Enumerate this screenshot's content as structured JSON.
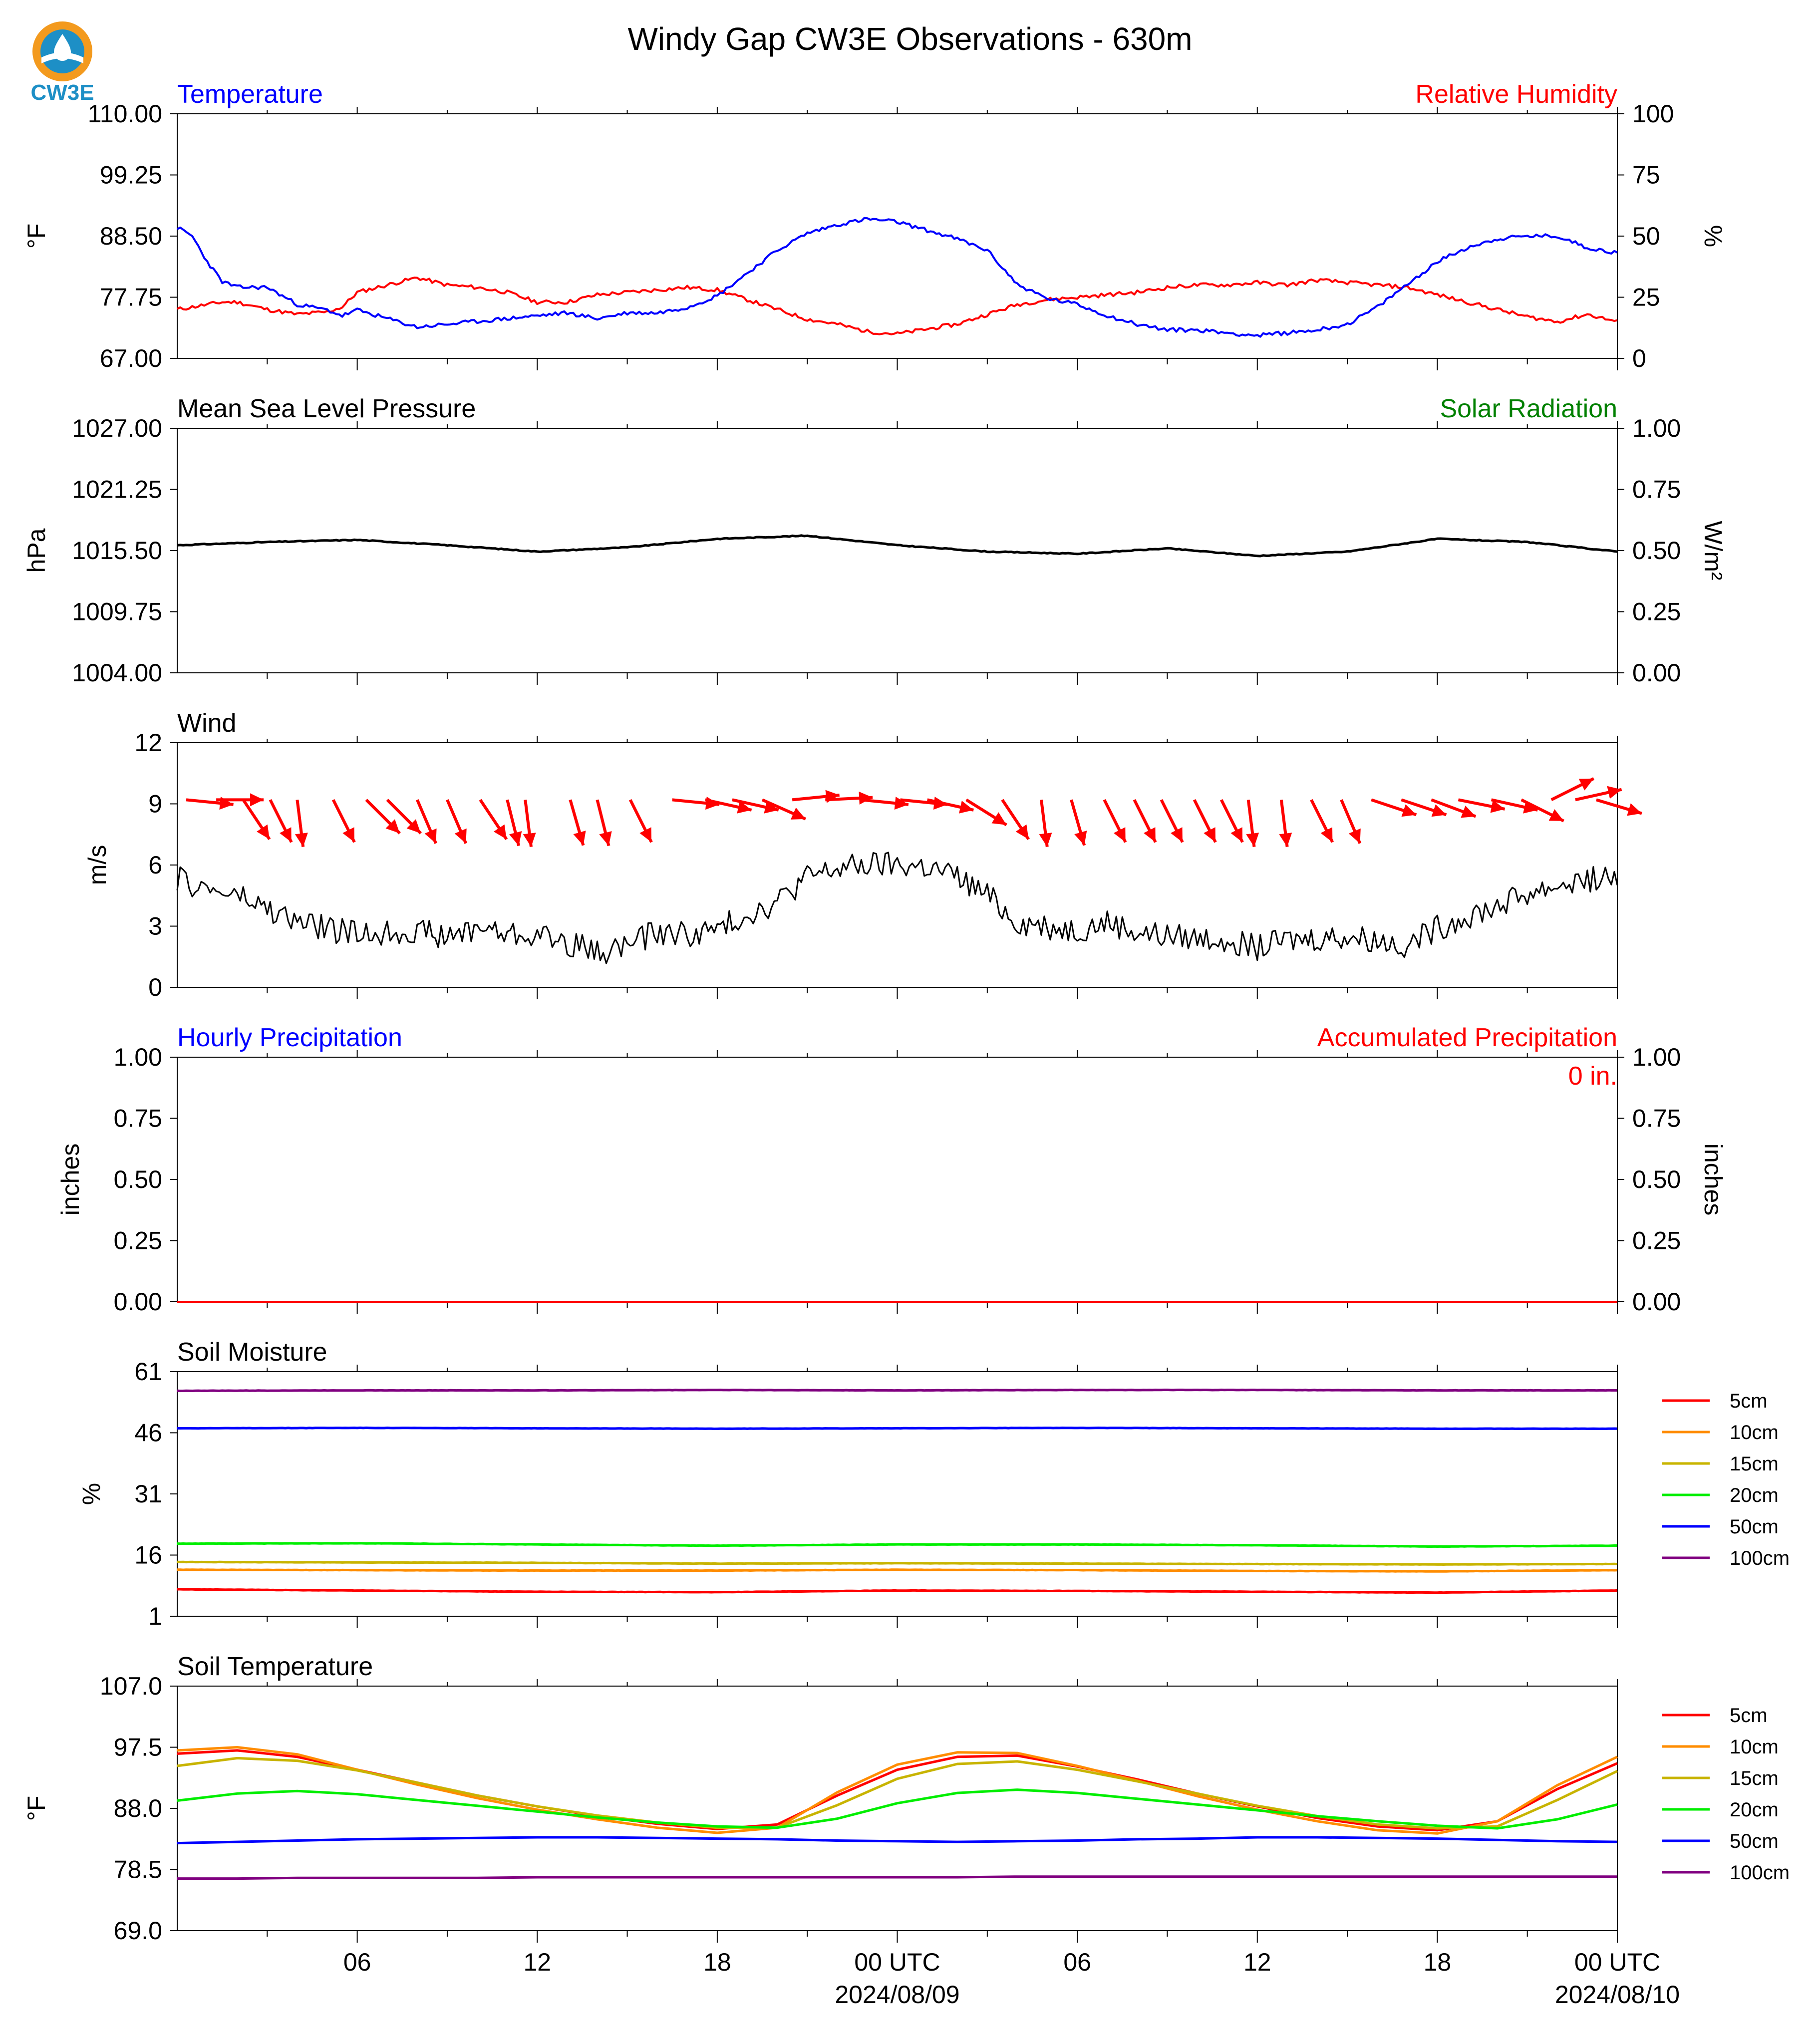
{
  "title": "Windy Gap CW3E Observations - 630m",
  "logo_text": "CW3E",
  "colors": {
    "temperature": "#0000ff",
    "humidity": "#ff0000",
    "pressure": "#000000",
    "solar": "#008000",
    "wind_speed": "#000000",
    "wind_vector": "#ff0000",
    "hourly_precip": "#0000ff",
    "accum_precip": "#ff0000"
  },
  "x_axis": {
    "hours_range": [
      0,
      48
    ],
    "major_ticks": [
      {
        "hour": 6,
        "label": "06",
        "sublabel": ""
      },
      {
        "hour": 12,
        "label": "12",
        "sublabel": ""
      },
      {
        "hour": 18,
        "label": "18",
        "sublabel": ""
      },
      {
        "hour": 24,
        "label": "00 UTC",
        "sublabel": "2024/08/09"
      },
      {
        "hour": 30,
        "label": "06",
        "sublabel": ""
      },
      {
        "hour": 36,
        "label": "12",
        "sublabel": ""
      },
      {
        "hour": 42,
        "label": "18",
        "sublabel": ""
      },
      {
        "hour": 48,
        "label": "00 UTC",
        "sublabel": "2024/08/10"
      }
    ]
  },
  "chart_data": [
    {
      "type": "line",
      "left_title": "Temperature",
      "right_title": "Relative Humidity",
      "ylabel": "°F",
      "ylabel_right": "%",
      "ylim": [
        67,
        110
      ],
      "yticks": [
        "67.00",
        "77.75",
        "88.50",
        "99.25",
        "110.00"
      ],
      "ylim_right": [
        0,
        100
      ],
      "yticks_right": [
        "0",
        "25",
        "50",
        "75",
        "100"
      ],
      "x_hours": [
        0,
        0.5,
        1,
        1.5,
        2,
        3,
        4,
        5,
        5.5,
        6,
        7,
        8,
        9,
        10,
        11,
        12,
        13,
        14,
        15,
        16,
        17,
        18,
        19,
        20,
        21,
        22,
        23,
        24,
        25,
        26,
        27,
        28,
        29,
        30,
        31,
        32,
        33,
        34,
        35,
        36,
        37,
        38,
        39,
        40,
        41,
        42,
        43,
        44,
        45,
        46,
        47,
        48
      ],
      "series": [
        {
          "name": "Temperature",
          "axis": "left",
          "values": [
            90,
            88.5,
            84,
            80.5,
            79.5,
            79.5,
            76.5,
            75.5,
            74.5,
            75.5,
            74,
            72.5,
            73,
            73.5,
            74,
            74.5,
            75,
            74,
            75,
            75,
            76,
            78,
            82,
            86,
            89,
            90.5,
            91.5,
            91,
            89.5,
            88,
            86,
            80,
            77.5,
            76.5,
            74.5,
            73,
            72,
            72,
            71.5,
            71,
            71.5,
            72,
            73,
            76,
            80,
            84,
            86.5,
            88,
            88.5,
            88.5,
            86.5,
            85.5
          ]
        },
        {
          "name": "Relative Humidity",
          "axis": "right",
          "values": [
            20,
            21,
            22,
            23,
            23,
            20,
            18,
            19,
            21,
            27,
            30,
            33,
            30,
            29,
            27,
            23,
            23,
            26,
            27,
            28,
            29,
            28,
            24,
            20,
            16,
            14,
            11,
            10,
            12,
            14,
            18,
            22,
            24,
            25,
            26,
            27,
            29,
            30,
            30,
            31,
            30,
            32,
            31,
            30,
            29,
            26,
            23,
            20,
            17,
            15,
            18,
            15
          ]
        }
      ]
    },
    {
      "type": "line",
      "left_title": "Mean Sea Level Pressure",
      "right_title": "Solar Radiation",
      "ylabel": "hPa",
      "ylabel_right": "W/m²",
      "ylim": [
        1004,
        1027
      ],
      "yticks": [
        "1004.00",
        "1009.75",
        "1015.50",
        "1021.25",
        "1027.00"
      ],
      "ylim_right": [
        0,
        1
      ],
      "yticks_right": [
        "0.00",
        "0.25",
        "0.50",
        "0.75",
        "1.00"
      ],
      "x_hours": [
        0,
        3,
        6,
        9,
        12,
        15,
        18,
        21,
        24,
        27,
        30,
        33,
        36,
        39,
        42,
        45,
        48
      ],
      "series": [
        {
          "name": "Mean Sea Level Pressure",
          "axis": "left",
          "values": [
            1016.0,
            1016.3,
            1016.5,
            1016.0,
            1015.4,
            1015.8,
            1016.6,
            1016.9,
            1016.0,
            1015.4,
            1015.2,
            1015.7,
            1015.0,
            1015.4,
            1016.6,
            1016.3,
            1015.4
          ]
        }
      ]
    },
    {
      "type": "line",
      "left_title": "Wind",
      "ylabel": "m/s",
      "ylim": [
        0,
        12
      ],
      "yticks": [
        "0",
        "3",
        "6",
        "9",
        "12"
      ],
      "x_hours": [
        0,
        1,
        2,
        3,
        4,
        5,
        6,
        7,
        8,
        9,
        10,
        11,
        12,
        13,
        14,
        15,
        16,
        17,
        18,
        19,
        20,
        21,
        22,
        23,
        24,
        25,
        26,
        27,
        28,
        29,
        30,
        31,
        32,
        33,
        34,
        35,
        36,
        37,
        38,
        39,
        40,
        41,
        42,
        43,
        44,
        45,
        46,
        47,
        48
      ],
      "series": [
        {
          "name": "Wind Speed",
          "axis": "left",
          "values": [
            5.3,
            4.8,
            4.5,
            3.8,
            3.2,
            2.9,
            2.6,
            2.7,
            2.8,
            2.4,
            3.0,
            2.6,
            2.6,
            2.2,
            1.7,
            2.1,
            2.7,
            2.6,
            2.8,
            3.6,
            4.2,
            5.4,
            5.8,
            6.0,
            6.0,
            5.9,
            5.4,
            4.5,
            3.2,
            3.0,
            2.8,
            3.2,
            2.7,
            2.5,
            2.4,
            2.4,
            1.9,
            2.3,
            2.4,
            2.5,
            2.3,
            2.1,
            2.9,
            3.5,
            4.0,
            4.6,
            5.0,
            5.3,
            5.4
          ]
        }
      ],
      "vectors": {
        "x_hours": [
          0.3,
          1.3,
          2.2,
          3.1,
          4.0,
          5.2,
          6.3,
          7.0,
          8.0,
          9.0,
          10.1,
          11.0,
          11.6,
          13.1,
          14.0,
          15.1,
          16.5,
          17.6,
          18.5,
          19.5,
          20.5,
          21.6,
          22.8,
          24.1,
          25.0,
          26.3,
          27.5,
          28.8,
          29.8,
          30.9,
          31.9,
          32.8,
          33.9,
          34.8,
          35.7,
          36.8,
          37.8,
          38.8,
          39.8,
          40.8,
          41.8,
          42.7,
          43.8,
          44.8,
          45.8,
          46.6,
          47.3
        ],
        "u": [
          1.0,
          1.0,
          0.4,
          0.3,
          0.1,
          0.3,
          0.5,
          0.5,
          0.3,
          0.3,
          0.4,
          0.2,
          0.1,
          0.2,
          0.2,
          0.3,
          1.0,
          0.9,
          0.9,
          0.9,
          1.0,
          1.0,
          1.0,
          1.0,
          0.9,
          0.8,
          0.4,
          0.1,
          0.2,
          0.3,
          0.3,
          0.3,
          0.3,
          0.3,
          0.1,
          0.1,
          0.3,
          0.3,
          0.9,
          0.9,
          0.8,
          1.0,
          0.9,
          0.8,
          0.8,
          0.9,
          1.0
        ],
        "v": [
          -0.1,
          0.0,
          -0.6,
          -0.6,
          -0.8,
          -0.6,
          -0.5,
          -0.5,
          -0.7,
          -0.7,
          -0.6,
          -0.8,
          -0.8,
          -0.7,
          -0.8,
          -0.6,
          -0.1,
          -0.2,
          -0.2,
          -0.4,
          0.1,
          0.05,
          -0.1,
          -0.1,
          -0.2,
          -0.5,
          -0.6,
          -0.8,
          -0.7,
          -0.6,
          -0.6,
          -0.6,
          -0.6,
          -0.6,
          -0.8,
          -0.8,
          -0.6,
          -0.7,
          -0.3,
          -0.3,
          -0.3,
          -0.2,
          -0.2,
          -0.4,
          0.4,
          0.2,
          -0.3
        ]
      }
    },
    {
      "type": "bar",
      "left_title": "Hourly Precipitation",
      "right_title": "Accumulated Precipitation",
      "annotation": "0 in.",
      "ylabel": "inches",
      "ylabel_right": "inches",
      "ylim": [
        0,
        1
      ],
      "yticks": [
        "0.00",
        "0.25",
        "0.50",
        "0.75",
        "1.00"
      ],
      "ylim_right": [
        0,
        1
      ],
      "yticks_right": [
        "0.00",
        "0.25",
        "0.50",
        "0.75",
        "1.00"
      ],
      "x_hours": [
        0,
        48
      ],
      "series": [
        {
          "name": "Hourly Precipitation",
          "axis": "left",
          "values": [
            0,
            0
          ]
        },
        {
          "name": "Accumulated Precipitation",
          "axis": "right",
          "values": [
            0,
            0
          ]
        }
      ]
    },
    {
      "type": "line",
      "left_title": "Soil Moisture",
      "ylabel": "%",
      "ylim": [
        1,
        61
      ],
      "yticks": [
        "1",
        "16",
        "31",
        "46",
        "61"
      ],
      "legend_position": "right",
      "x_hours": [
        0,
        6,
        12,
        18,
        24,
        30,
        36,
        42,
        48
      ],
      "series": [
        {
          "name": "5cm",
          "color": "#ff0000",
          "values": [
            7.6,
            7.3,
            7.0,
            6.9,
            7.3,
            7.2,
            7.0,
            6.8,
            7.3
          ]
        },
        {
          "name": "10cm",
          "color": "#ff8c00",
          "values": [
            12.4,
            12.3,
            12.2,
            12.2,
            12.4,
            12.3,
            12.1,
            12.0,
            12.3
          ]
        },
        {
          "name": "15cm",
          "color": "#c8b400",
          "values": [
            14.3,
            14.2,
            14.1,
            13.9,
            14.0,
            13.9,
            13.8,
            13.7,
            13.8
          ]
        },
        {
          "name": "20cm",
          "color": "#00ee00",
          "values": [
            18.8,
            18.9,
            18.6,
            18.3,
            18.6,
            18.6,
            18.4,
            18.1,
            18.3
          ]
        },
        {
          "name": "50cm",
          "color": "#0000ff",
          "values": [
            47.1,
            47.2,
            47.1,
            47.0,
            47.1,
            47.2,
            47.1,
            47.0,
            47.0
          ]
        },
        {
          "name": "100cm",
          "color": "#800080",
          "values": [
            56.3,
            56.4,
            56.4,
            56.5,
            56.4,
            56.5,
            56.5,
            56.4,
            56.4
          ]
        }
      ]
    },
    {
      "type": "line",
      "left_title": "Soil Temperature",
      "ylabel": "°F",
      "ylim": [
        69,
        107
      ],
      "yticks": [
        "69.0",
        "78.5",
        "88.0",
        "97.5",
        "107.0"
      ],
      "legend_position": "right",
      "x_hours": [
        0,
        2,
        4,
        6,
        8,
        10,
        12,
        14,
        16,
        18,
        20,
        22,
        24,
        26,
        28,
        30,
        32,
        34,
        36,
        38,
        40,
        42,
        44,
        46,
        48
      ],
      "series": [
        {
          "name": "5cm",
          "color": "#ff0000",
          "values": [
            96.5,
            97.0,
            96.0,
            94.0,
            92.0,
            90.0,
            88.3,
            86.8,
            85.6,
            84.8,
            85.5,
            90.0,
            94.0,
            96.0,
            96.2,
            94.5,
            92.5,
            90.3,
            88.3,
            86.5,
            85.2,
            84.6,
            86.0,
            91.0,
            95.0
          ]
        },
        {
          "name": "10cm",
          "color": "#ff8c00",
          "values": [
            97.0,
            97.5,
            96.4,
            94.0,
            91.7,
            89.6,
            87.8,
            86.3,
            85.0,
            84.2,
            85.0,
            90.5,
            94.8,
            96.7,
            96.6,
            94.6,
            92.3,
            89.9,
            87.8,
            86.0,
            84.6,
            84.1,
            86.0,
            91.6,
            96.0
          ]
        },
        {
          "name": "15cm",
          "color": "#c8b400",
          "values": [
            94.6,
            95.8,
            95.4,
            93.9,
            92.0,
            90.0,
            88.3,
            86.9,
            85.8,
            85.0,
            85.0,
            88.5,
            92.6,
            94.9,
            95.3,
            94.0,
            92.2,
            90.3,
            88.4,
            86.8,
            85.5,
            84.9,
            85.2,
            89.3,
            93.8
          ]
        },
        {
          "name": "20cm",
          "color": "#00ee00",
          "values": [
            89.2,
            90.3,
            90.7,
            90.2,
            89.3,
            88.4,
            87.5,
            86.6,
            85.8,
            85.2,
            85.0,
            86.4,
            88.8,
            90.4,
            90.9,
            90.4,
            89.5,
            88.6,
            87.7,
            86.8,
            86.0,
            85.3,
            84.9,
            86.3,
            88.6
          ]
        },
        {
          "name": "50cm",
          "color": "#0000ff",
          "values": [
            82.6,
            82.8,
            83.0,
            83.2,
            83.3,
            83.4,
            83.5,
            83.5,
            83.4,
            83.3,
            83.2,
            83.0,
            82.9,
            82.8,
            82.9,
            83.0,
            83.2,
            83.3,
            83.5,
            83.5,
            83.4,
            83.3,
            83.1,
            82.9,
            82.8
          ]
        },
        {
          "name": "100cm",
          "color": "#800080",
          "values": [
            77.1,
            77.1,
            77.2,
            77.2,
            77.2,
            77.2,
            77.3,
            77.3,
            77.3,
            77.3,
            77.3,
            77.3,
            77.3,
            77.3,
            77.4,
            77.4,
            77.4,
            77.4,
            77.4,
            77.4,
            77.4,
            77.4,
            77.4,
            77.4,
            77.4
          ]
        }
      ]
    }
  ]
}
